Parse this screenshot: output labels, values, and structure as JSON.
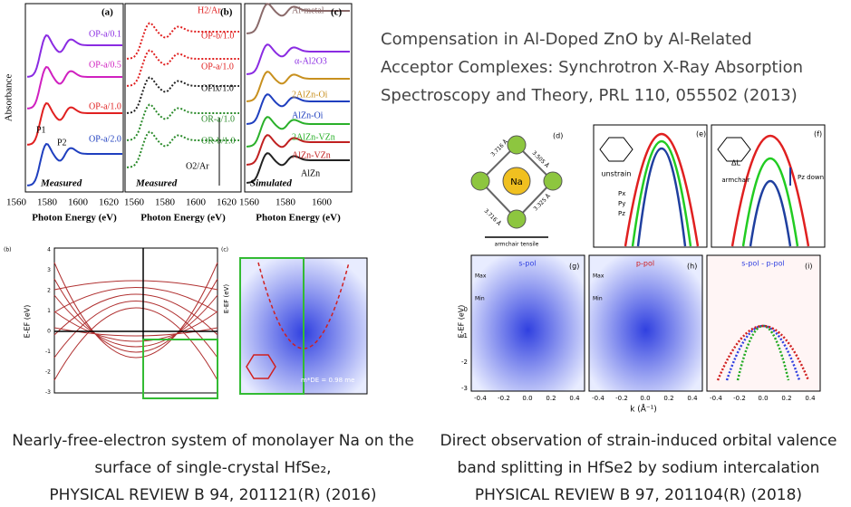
{
  "xas": {
    "panel_labels": [
      "(a)",
      "(b)",
      "(c)"
    ],
    "y_label": "Absorbance",
    "x_label": "Photon Energy (eV)",
    "x_ticks_a": [
      1560,
      1580,
      1600,
      1620
    ],
    "x_ticks_b": [
      1560,
      1580,
      1600,
      1620
    ],
    "x_ticks_c": [
      1560,
      1580,
      1600
    ],
    "curves_a": [
      "OP-a/0.1",
      "OP-a/0.5",
      "OP-a/1.0",
      "OP-a/2.0"
    ],
    "peaks_a": [
      "P1",
      "P2"
    ],
    "curves_b": [
      "H2/Ar",
      "OP-b/1.0",
      "OP-a/1.0",
      "OFix/1.0",
      "OR-a/1.0",
      "OR-b/1.0",
      "O2/Ar"
    ],
    "curves_c": [
      "Al-metal",
      "α-Al2O3",
      "2AlZn-Oi",
      "AlZn-Oi",
      "2AlZn-VZn",
      "AlZn-VZn",
      "AlZn"
    ],
    "measured": "Measured",
    "simulated": "Simulated"
  },
  "title": {
    "lines": [
      "Compensation in Al-Doped ZnO by Al-Related",
      "Acceptor Complexes: Synchrotron X-Ray Absorption",
      "Spectroscopy and Theory, PRL 110, 055502 (2013)"
    ]
  },
  "hfse_strain": {
    "panel_labels": [
      "(d)",
      "(e)",
      "(f)",
      "(g)",
      "(h)",
      "(i)"
    ],
    "distances": [
      "3.716 Å",
      "3.505 Å",
      "3.716 Å",
      "3.325 Å"
    ],
    "atom": "Na",
    "tensile": "armchair tensile",
    "unstrain": "unstrain",
    "orbitals": [
      "Px",
      "Py",
      "Pz"
    ],
    "delta": "ΔL",
    "armchair": "armchair",
    "pz_down": "Pz down",
    "maps": [
      "s-pol",
      "p-pol",
      "s-pol - p-pol"
    ],
    "max": "Max",
    "min": "Min",
    "y_label": "E-EF (eV)",
    "x_label": "k (Å⁻¹)",
    "y_ticks": [
      0,
      -1,
      -2,
      -3
    ],
    "k_ticks": [
      "-0.4",
      "-0.2",
      "0.0",
      "0.2",
      "0.4"
    ]
  },
  "na_monolayer": {
    "panel_labels": [
      "(b)",
      "(c)"
    ],
    "y_label": "E-EF (eV)",
    "y_ticks": [
      4,
      3,
      2,
      1,
      0,
      -1,
      -2,
      -3
    ],
    "mass": "m*DE = 0.98 me"
  },
  "captions": {
    "left": [
      "Nearly-free-electron system of monolayer Na on the",
      "surface of single-crystal HfSe₂,",
      "PHYSICAL REVIEW B 94, 201121(R) (2016)"
    ],
    "right": [
      "Direct observation of strain-induced orbital valence",
      "band splitting in HfSe2 by sodium intercalation",
      "PHYSICAL REVIEW B 97, 201104(R) (2018)"
    ]
  }
}
